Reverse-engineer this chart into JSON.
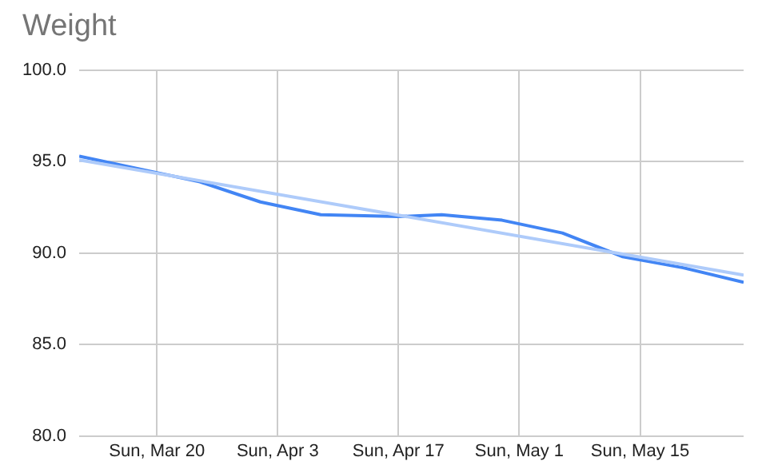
{
  "chart_data": {
    "type": "line",
    "title": "Weight",
    "x": [
      "--03-11",
      "--03-20",
      "--03-25",
      "--04-01",
      "--04-08",
      "--04-17",
      "--04-22",
      "--04-29",
      "--05-06",
      "--05-13",
      "--05-20",
      "--05-27"
    ],
    "series": [
      {
        "color": "#4285f4",
        "values": [
          95.3,
          94.4,
          93.9,
          92.8,
          92.1,
          92.0,
          92.1,
          91.8,
          91.1,
          89.8,
          89.2,
          88.4
        ]
      },
      {
        "type": "line",
        "color": "#aecbfa",
        "x": [
          "--03-11",
          "--05-27"
        ],
        "values": [
          95.1,
          88.8
        ]
      }
    ],
    "xlim": [
      "--03-11",
      "--05-27"
    ],
    "xticks": [
      {
        "value": "--03-20",
        "label": "Sun, Mar 20"
      },
      {
        "value": "--04-03",
        "label": "Sun, Apr 3"
      },
      {
        "value": "--04-17",
        "label": "Sun, Apr 17"
      },
      {
        "value": "--05-01",
        "label": "Sun, May 1"
      },
      {
        "value": "--05-15",
        "label": "Sun, May 15"
      }
    ],
    "ylim": [
      80,
      100
    ],
    "yticks": [
      {
        "value": 80,
        "label": "80.0"
      },
      {
        "value": 85,
        "label": "85.0"
      },
      {
        "value": 90,
        "label": "90.0"
      },
      {
        "value": 95,
        "label": "95.0"
      },
      {
        "value": 100,
        "label": "100.0"
      }
    ],
    "grid": true,
    "legend": false,
    "marker": "none",
    "line_style": "solid"
  }
}
